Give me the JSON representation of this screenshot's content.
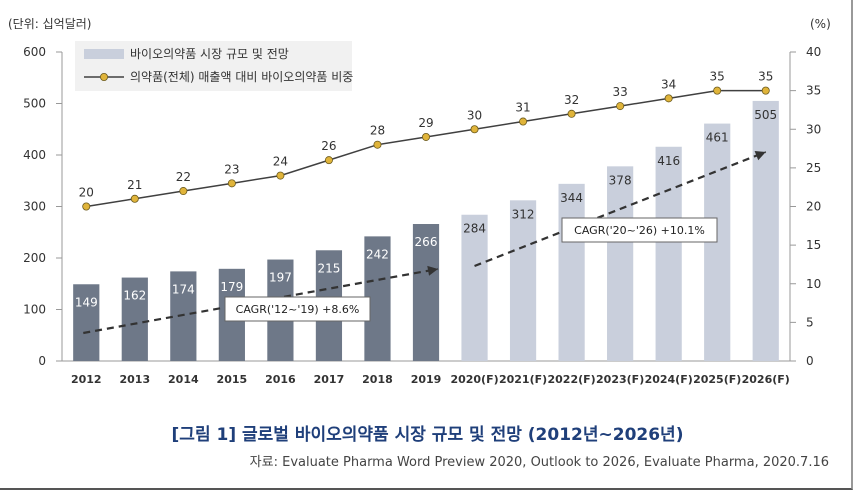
{
  "chart_data": {
    "type": "bar+line",
    "left_axis_label": "(단위: 십억달러)",
    "right_axis_label": "(%)",
    "ylim_left": [
      0,
      600
    ],
    "yticks_left": [
      0,
      100,
      200,
      300,
      400,
      500,
      600
    ],
    "ylim_right": [
      0,
      40
    ],
    "yticks_right": [
      0,
      5,
      10,
      15,
      20,
      25,
      30,
      35,
      40
    ],
    "categories": [
      "2012",
      "2013",
      "2014",
      "2015",
      "2016",
      "2017",
      "2018",
      "2019",
      "2020(F)",
      "2021(F)",
      "2022(F)",
      "2023(F)",
      "2024(F)",
      "2025(F)",
      "2026(F)"
    ],
    "series": [
      {
        "name": "바이오의약품 시장 규모 및 전망",
        "kind": "bar",
        "values": [
          149,
          162,
          174,
          179,
          197,
          215,
          242,
          266,
          284,
          312,
          344,
          378,
          416,
          461,
          505
        ],
        "color_actual": "#6e7888",
        "color_forecast": "#c9cfdc"
      },
      {
        "name": "의약품(전체) 매출액 대비 바이오의약품 비중",
        "kind": "line",
        "values": [
          20,
          21,
          22,
          23,
          24,
          26,
          28,
          29,
          30,
          31,
          32,
          33,
          34,
          35,
          35
        ],
        "color": "#404040",
        "marker_color": "#e0b43a"
      }
    ],
    "annotations": [
      {
        "text": "CAGR('12~'19)  +8.6%"
      },
      {
        "text": "CAGR('20~'26)  +10.1%"
      }
    ]
  },
  "caption": "[그림 1] 글로벌 바이오의약품 시장 규모 및 전망 (2012년~2026년)",
  "source": "자료: Evaluate Pharma Word Preview 2020, Outlook to 2026, Evaluate Pharma, 2020.7.16"
}
